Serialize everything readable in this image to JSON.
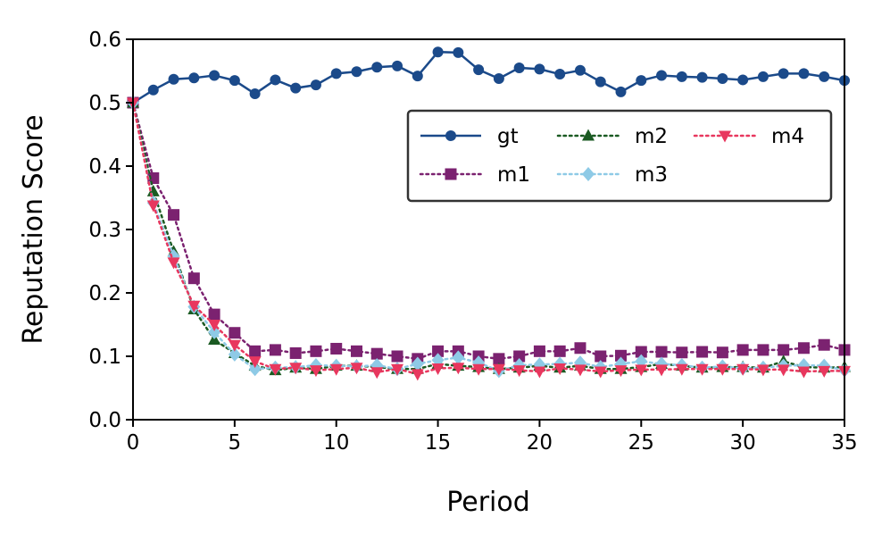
{
  "chart_data": {
    "type": "line",
    "xlabel": "Period",
    "ylabel": "Reputation Score",
    "xlim": [
      0,
      35
    ],
    "ylim": [
      0.0,
      0.6
    ],
    "xticks": [
      "0",
      "5",
      "10",
      "15",
      "20",
      "25",
      "30",
      "35"
    ],
    "yticks": [
      "0.0",
      "0.1",
      "0.2",
      "0.3",
      "0.4",
      "0.5",
      "0.6"
    ],
    "grid": false,
    "legend_position": "upper-right",
    "x": [
      0,
      1,
      2,
      3,
      4,
      5,
      6,
      7,
      8,
      9,
      10,
      11,
      12,
      13,
      14,
      15,
      16,
      17,
      18,
      19,
      20,
      21,
      22,
      23,
      24,
      25,
      26,
      27,
      28,
      29,
      30,
      31,
      32,
      33,
      34,
      35
    ],
    "series": [
      {
        "name": "gt",
        "color": "#1b4a8a",
        "marker": "circle",
        "linestyle": "solid",
        "values": [
          0.5,
          0.52,
          0.537,
          0.539,
          0.543,
          0.535,
          0.514,
          0.536,
          0.523,
          0.528,
          0.546,
          0.549,
          0.556,
          0.558,
          0.542,
          0.58,
          0.579,
          0.552,
          0.538,
          0.555,
          0.553,
          0.545,
          0.551,
          0.533,
          0.517,
          0.535,
          0.543,
          0.541,
          0.54,
          0.538,
          0.536,
          0.541,
          0.546,
          0.546,
          0.541,
          0.535
        ]
      },
      {
        "name": "m1",
        "color": "#7b2270",
        "marker": "square",
        "linestyle": "dotted",
        "values": [
          0.5,
          0.381,
          0.323,
          0.223,
          0.166,
          0.137,
          0.108,
          0.11,
          0.105,
          0.108,
          0.112,
          0.108,
          0.104,
          0.1,
          0.096,
          0.108,
          0.108,
          0.1,
          0.096,
          0.1,
          0.108,
          0.108,
          0.113,
          0.1,
          0.101,
          0.107,
          0.107,
          0.106,
          0.107,
          0.106,
          0.11,
          0.11,
          0.11,
          0.113,
          0.118,
          0.11
        ]
      },
      {
        "name": "m2",
        "color": "#1a5a22",
        "marker": "triangle-up",
        "linestyle": "dotted",
        "values": [
          0.5,
          0.36,
          0.265,
          0.174,
          0.126,
          0.105,
          0.085,
          0.078,
          0.082,
          0.08,
          0.085,
          0.085,
          0.083,
          0.08,
          0.08,
          0.088,
          0.085,
          0.083,
          0.08,
          0.082,
          0.085,
          0.082,
          0.085,
          0.08,
          0.08,
          0.083,
          0.088,
          0.085,
          0.082,
          0.083,
          0.083,
          0.082,
          0.092,
          0.083,
          0.082,
          0.083
        ]
      },
      {
        "name": "m3",
        "color": "#8ecae6",
        "marker": "diamond",
        "linestyle": "dotted",
        "values": [
          0.5,
          0.342,
          0.258,
          0.178,
          0.138,
          0.103,
          0.08,
          0.082,
          0.083,
          0.086,
          0.085,
          0.084,
          0.086,
          0.08,
          0.088,
          0.094,
          0.098,
          0.09,
          0.077,
          0.086,
          0.087,
          0.088,
          0.09,
          0.083,
          0.088,
          0.092,
          0.088,
          0.086,
          0.082,
          0.084,
          0.081,
          0.082,
          0.085,
          0.086,
          0.085,
          0.078
        ]
      },
      {
        "name": "m4",
        "color": "#e8375e",
        "marker": "triangle-down",
        "linestyle": "dotted",
        "values": [
          0.5,
          0.338,
          0.248,
          0.18,
          0.15,
          0.118,
          0.092,
          0.08,
          0.082,
          0.078,
          0.08,
          0.082,
          0.075,
          0.08,
          0.072,
          0.081,
          0.082,
          0.08,
          0.08,
          0.078,
          0.076,
          0.081,
          0.079,
          0.076,
          0.078,
          0.079,
          0.079,
          0.08,
          0.08,
          0.08,
          0.08,
          0.079,
          0.079,
          0.076,
          0.077,
          0.077
        ]
      }
    ]
  }
}
